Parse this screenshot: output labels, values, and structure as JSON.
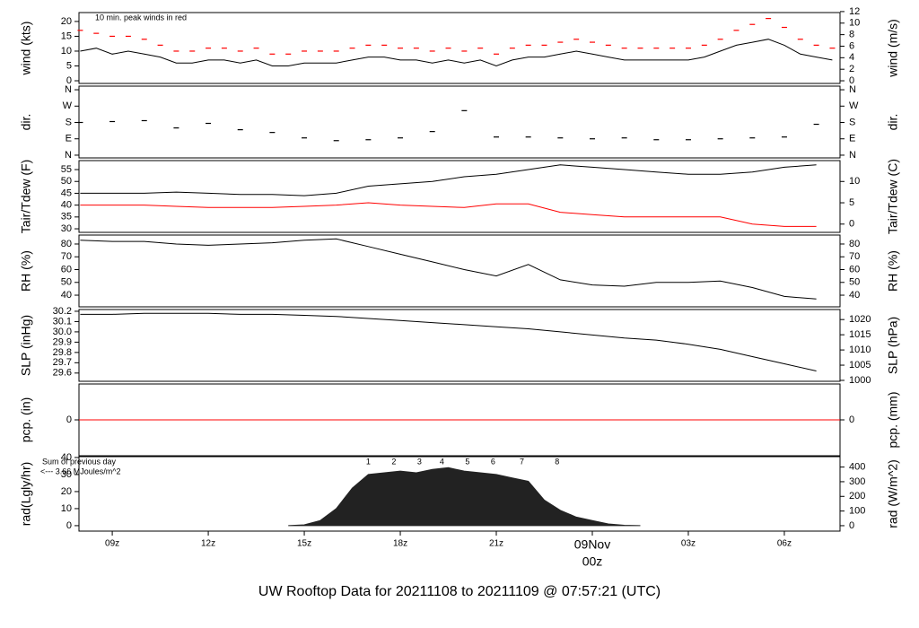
{
  "x_axis": {
    "xlim": [
      7.96,
      31.74
    ],
    "xticks": [
      {
        "value": 9,
        "label": "09z"
      },
      {
        "value": 12,
        "label": "12z"
      },
      {
        "value": 15,
        "label": "15z"
      },
      {
        "value": 18,
        "label": "18z"
      },
      {
        "value": 21,
        "label": "21z"
      },
      {
        "value": 24,
        "label": "00z"
      },
      {
        "value": 27,
        "label": "03z"
      },
      {
        "value": 30,
        "label": "06z"
      }
    ],
    "date_marker": {
      "value": 24,
      "label": "09Nov"
    },
    "date_color": "#ff0000"
  },
  "footer": "UW Rooftop Data for 20211108  to  20211109 @ 07:57:21  (UTC)",
  "footer_color": "#0000cc",
  "chart_data": [
    {
      "type": "line",
      "ylabel": "wind (kts)",
      "y2label": "wind (m/s)",
      "ylim": [
        -0.9,
        23
      ],
      "yticks": [
        0,
        5,
        10,
        15,
        20
      ],
      "y2lim": [
        -0.46,
        11.83
      ],
      "y2ticks": [
        0,
        2,
        4,
        6,
        8,
        10,
        12
      ],
      "note": "10 min. peak winds in red",
      "note_color": "#ff0000",
      "x": [
        8,
        8.5,
        9,
        9.5,
        10,
        10.5,
        11,
        11.5,
        12,
        12.5,
        13,
        13.5,
        14,
        14.5,
        15,
        15.5,
        16,
        16.5,
        17,
        17.5,
        18,
        18.5,
        19,
        19.5,
        20,
        20.5,
        21,
        21.5,
        22,
        22.5,
        23,
        23.5,
        24,
        24.5,
        25,
        25.5,
        26,
        26.5,
        27,
        27.5,
        28,
        28.5,
        29,
        29.5,
        30,
        30.5,
        31,
        31.5
      ],
      "series": [
        {
          "marker": "line",
          "color": "#000000",
          "values": [
            10,
            11,
            9,
            10,
            9,
            8,
            6,
            6,
            7,
            7,
            6,
            7,
            5,
            5,
            6,
            6,
            6,
            7,
            8,
            8,
            7,
            7,
            6,
            7,
            6,
            7,
            5,
            7,
            8,
            8,
            9,
            10,
            9,
            8,
            7,
            7,
            7,
            7,
            7,
            8,
            10,
            12,
            13,
            14,
            12,
            9,
            8,
            7
          ]
        },
        {
          "marker": "dash",
          "color": "#ff0000",
          "values": [
            17,
            16,
            15,
            15,
            14,
            12,
            10,
            10,
            11,
            11,
            10,
            11,
            9,
            9,
            10,
            10,
            10,
            11,
            12,
            12,
            11,
            11,
            10,
            11,
            10,
            11,
            9,
            11,
            12,
            12,
            13,
            14,
            13,
            12,
            11,
            11,
            11,
            11,
            11,
            12,
            14,
            17,
            19,
            21,
            18,
            14,
            12,
            11
          ]
        }
      ]
    },
    {
      "type": "scatter",
      "ylabel": "dir.",
      "y2label": "dir.",
      "ylim": [
        -15,
        380
      ],
      "yticks": [
        {
          "value": 0,
          "label": "N"
        },
        {
          "value": 90,
          "label": "E"
        },
        {
          "value": 180,
          "label": "S"
        },
        {
          "value": 270,
          "label": "W"
        },
        {
          "value": 360,
          "label": "N"
        }
      ],
      "y2lim": [
        -15,
        380
      ],
      "y2ticks": [
        {
          "value": 0,
          "label": "N"
        },
        {
          "value": 90,
          "label": "E"
        },
        {
          "value": 180,
          "label": "S"
        },
        {
          "value": 270,
          "label": "W"
        },
        {
          "value": 360,
          "label": "N"
        }
      ],
      "x": [
        8,
        9,
        10,
        11,
        12,
        13,
        14,
        15,
        16,
        17,
        18,
        19,
        20,
        21,
        22,
        23,
        24,
        25,
        26,
        27,
        28,
        29,
        30,
        31
      ],
      "series": [
        {
          "marker": "dash",
          "color": "#000000",
          "values": [
            180,
            185,
            190,
            150,
            175,
            140,
            125,
            95,
            80,
            85,
            95,
            130,
            245,
            100,
            100,
            95,
            90,
            95,
            85,
            85,
            90,
            95,
            100,
            170
          ]
        }
      ]
    },
    {
      "type": "line",
      "ylabel": "Tair/Tdew (F)",
      "y2label": "Tair/Tdew (C)",
      "ylim": [
        28.5,
        58.8
      ],
      "yticks": [
        30,
        35,
        40,
        45,
        50,
        55
      ],
      "y2lim": [
        -1.94,
        14.9
      ],
      "y2ticks": [
        0,
        5,
        10
      ],
      "x": [
        8,
        9,
        10,
        11,
        12,
        13,
        14,
        15,
        16,
        17,
        18,
        19,
        20,
        21,
        22,
        23,
        24,
        25,
        26,
        27,
        28,
        29,
        30,
        31
      ],
      "series": [
        {
          "marker": "line",
          "color": "#000000",
          "values": [
            45,
            45,
            45,
            45.5,
            45,
            44.5,
            44.5,
            44,
            45,
            48,
            49,
            50,
            52,
            53,
            55,
            57,
            56,
            55,
            54,
            53,
            53,
            54,
            56,
            57
          ]
        },
        {
          "marker": "line",
          "color": "#ff0000",
          "values": [
            40,
            40,
            40,
            39.5,
            39,
            39,
            39,
            39.5,
            40,
            41,
            40,
            39.5,
            39,
            40.5,
            40.5,
            37,
            36,
            35,
            35,
            35,
            35,
            32,
            31,
            31
          ]
        }
      ]
    },
    {
      "type": "line",
      "ylabel": "RH (%)",
      "y2label": "RH (%)",
      "ylim": [
        30.9,
        87
      ],
      "yticks": [
        40,
        50,
        60,
        70,
        80
      ],
      "y2lim": [
        30.9,
        87
      ],
      "y2ticks": [
        40,
        50,
        60,
        70,
        80
      ],
      "x": [
        8,
        9,
        10,
        11,
        12,
        13,
        14,
        15,
        16,
        17,
        18,
        19,
        20,
        21,
        22,
        23,
        24,
        25,
        26,
        27,
        28,
        29,
        30,
        31
      ],
      "series": [
        {
          "marker": "line",
          "color": "#000000",
          "values": [
            83,
            82,
            82,
            80,
            79,
            80,
            81,
            83,
            84,
            78,
            72,
            66,
            60,
            55,
            64,
            52,
            48,
            47,
            50,
            50,
            51,
            46,
            39,
            37
          ]
        }
      ]
    },
    {
      "type": "line",
      "ylabel": "SLP (inHg)",
      "y2label": "SLP (hPa)",
      "ylim": [
        29.52,
        30.217
      ],
      "yticks": [
        29.6,
        29.7,
        29.8,
        29.9,
        {
          "value": 30,
          "label": "30.0"
        },
        30.1,
        30.2
      ],
      "y2lim": [
        999.7,
        1023.3
      ],
      "y2ticks": [
        1000,
        1005,
        1010,
        1015,
        1020
      ],
      "x": [
        8,
        9,
        10,
        11,
        12,
        13,
        14,
        15,
        16,
        17,
        18,
        19,
        20,
        21,
        22,
        23,
        24,
        25,
        26,
        27,
        28,
        29,
        30,
        31
      ],
      "series": [
        {
          "marker": "line",
          "color": "#000000",
          "values": [
            30.17,
            30.17,
            30.18,
            30.18,
            30.18,
            30.17,
            30.17,
            30.16,
            30.15,
            30.13,
            30.11,
            30.09,
            30.07,
            30.05,
            30.03,
            30.0,
            29.97,
            29.94,
            29.92,
            29.88,
            29.83,
            29.76,
            29.69,
            29.62
          ]
        }
      ]
    },
    {
      "type": "line",
      "ylabel": "pcp. (in)",
      "y2label": "pcp. (mm)",
      "ylim": [
        -1,
        1
      ],
      "yticks": [
        0
      ],
      "y2lim": [
        -1,
        1
      ],
      "y2ticks": [
        0
      ],
      "x": [
        7.96,
        31.74
      ],
      "series": [
        {
          "marker": "line",
          "color": "#ff0000",
          "values": [
            0,
            0
          ]
        }
      ]
    },
    {
      "type": "area",
      "ylabel": "rad(Lgly/hr)",
      "y2label": "rad (W/m^2)",
      "ylim": [
        -3.2,
        40.5
      ],
      "yticks": [
        0,
        10,
        20,
        30,
        40
      ],
      "y2lim": [
        -37,
        471
      ],
      "y2ticks": [
        0,
        100,
        200,
        300,
        400
      ],
      "notes": [
        "Sum of previous day",
        "<--- 3.66 MJoules/m^2"
      ],
      "note_color": "#9933cc",
      "hour_marks": {
        "x": [
          17.0,
          17.8,
          18.6,
          19.3,
          20.1,
          20.9,
          21.8,
          22.9
        ],
        "labels": [
          1,
          2,
          3,
          4,
          5,
          6,
          7,
          8
        ]
      },
      "x": [
        14.5,
        15,
        15.5,
        16,
        16.5,
        17,
        17.5,
        18,
        18.5,
        19,
        19.5,
        20,
        20.5,
        21,
        21.5,
        22,
        22.5,
        23,
        23.5,
        24,
        24.5,
        25,
        25.5
      ],
      "series": [
        {
          "marker": "area",
          "color": "#222222",
          "values": [
            0,
            0.5,
            3,
            10,
            22,
            30,
            31,
            32,
            31,
            33,
            34,
            32,
            31,
            30,
            28,
            26,
            15,
            9,
            5,
            3,
            1,
            0.2,
            0
          ]
        }
      ]
    }
  ]
}
